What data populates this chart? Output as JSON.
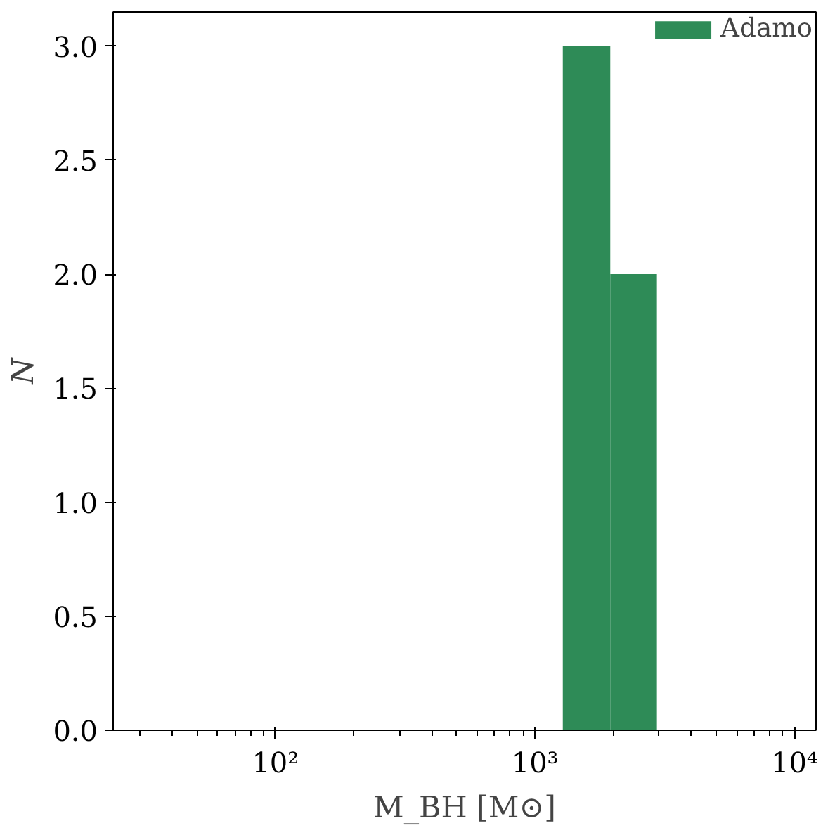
{
  "chart_data": {
    "type": "histogram",
    "xlabel": "M_BH [M⊙]",
    "ylabel": "N",
    "bins": [
      1280,
      1950,
      2950
    ],
    "series": [
      {
        "name": "Adamo",
        "color": "#2e8b57",
        "values": [
          3,
          2
        ]
      }
    ],
    "log": "x",
    "xlim": [
      23.7,
      12100
    ],
    "ylim": [
      0,
      3.15
    ],
    "xticks": [
      {
        "value": 100,
        "label": "10²"
      },
      {
        "value": 1000,
        "label": "10³"
      },
      {
        "value": 10000,
        "label": "10⁴"
      }
    ],
    "yticks": [
      {
        "value": 0,
        "label": "0.0"
      },
      {
        "value": 0.5,
        "label": "0.5"
      },
      {
        "value": 1,
        "label": "1.0"
      },
      {
        "value": 1.5,
        "label": "1.5"
      },
      {
        "value": 2,
        "label": "2.0"
      },
      {
        "value": 2.5,
        "label": "2.5"
      },
      {
        "value": 3,
        "label": "3.0"
      }
    ],
    "grid": false,
    "legend": "top right"
  }
}
